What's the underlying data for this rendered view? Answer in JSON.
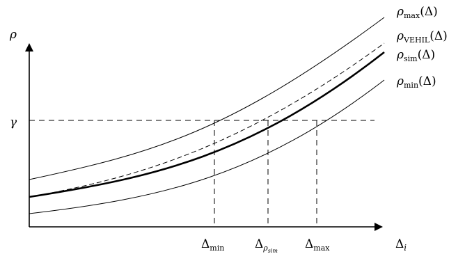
{
  "figure": {
    "axis_y": {
      "symbol": "ρ"
    },
    "axis_x": {
      "symbol": "Δ",
      "subscript": "i"
    },
    "threshold": {
      "symbol": "γ"
    },
    "curves": [
      {
        "symbol": "ρ",
        "subscript": "max",
        "arg": "(Δ)",
        "style": "thin-solid"
      },
      {
        "symbol": "ρ",
        "subscript": "VEHIL",
        "arg": "(Δ)",
        "style": "dashed"
      },
      {
        "symbol": "ρ",
        "subscript": "sim",
        "arg": "(Δ)",
        "style": "thick-solid"
      },
      {
        "symbol": "ρ",
        "subscript": "min",
        "arg": "(Δ)",
        "style": "thin-solid"
      }
    ],
    "x_marks": [
      {
        "symbol": "Δ",
        "subscript": "min"
      },
      {
        "symbol": "Δ",
        "subscript": "ρ",
        "subsubscript": "sim"
      },
      {
        "symbol": "Δ",
        "subscript": "max"
      }
    ],
    "colors": {
      "ink": "#000000",
      "background": "#ffffff"
    }
  }
}
